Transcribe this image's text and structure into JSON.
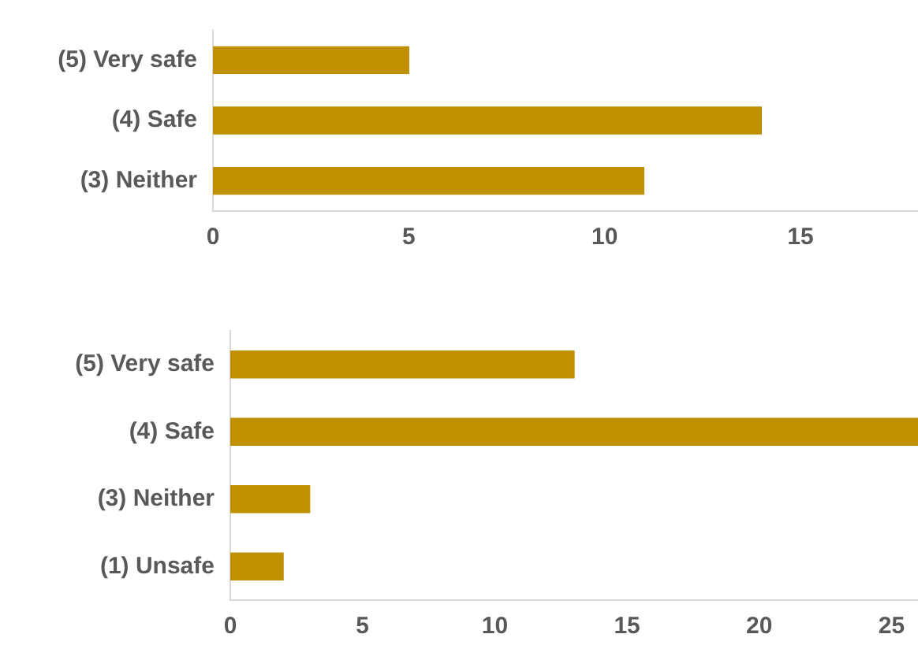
{
  "chart_data": [
    {
      "type": "bar",
      "orientation": "horizontal",
      "categories": [
        "(5) Very safe",
        "(4) Safe",
        "(3) Neither"
      ],
      "values": [
        5,
        14,
        11
      ],
      "color": "#bf9000",
      "xlim": [
        0,
        18
      ],
      "xticks": [
        0,
        5,
        10,
        15
      ],
      "grid": false,
      "legend": false
    },
    {
      "type": "bar",
      "orientation": "horizontal",
      "categories": [
        "(5) Very safe",
        "(4) Safe",
        "(3) Neither",
        "(1) Unsafe"
      ],
      "values": [
        13,
        26,
        3,
        2
      ],
      "color": "#bf9000",
      "xlim": [
        0,
        26
      ],
      "xticks": [
        0,
        5,
        10,
        15,
        20,
        25
      ],
      "grid": false,
      "legend": false
    }
  ]
}
